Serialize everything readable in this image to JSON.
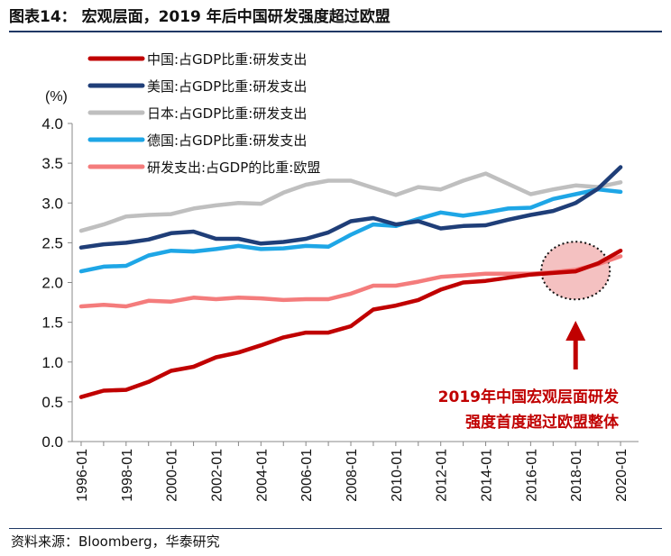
{
  "header": {
    "title": "图表14：  宏观层面，2019 年后中国研发强度超过欧盟"
  },
  "footer": {
    "source": "资料来源：Bloomberg，华泰研究"
  },
  "chart_data": {
    "type": "line",
    "title": "",
    "unit": "(%)",
    "xlabel": "",
    "ylabel": "",
    "ylim": [
      0.0,
      4.0
    ],
    "yticks": [
      "0.0",
      "0.5",
      "1.0",
      "1.5",
      "2.0",
      "2.5",
      "3.0",
      "3.5",
      "4.0"
    ],
    "xtick_labels": [
      "1996-01",
      "1998-01",
      "2000-01",
      "2002-01",
      "2004-01",
      "2006-01",
      "2008-01",
      "2010-01",
      "2012-01",
      "2014-01",
      "2016-01",
      "2018-01",
      "2020-01"
    ],
    "x": [
      1996,
      1997,
      1998,
      1999,
      2000,
      2001,
      2002,
      2003,
      2004,
      2005,
      2006,
      2007,
      2008,
      2009,
      2010,
      2011,
      2012,
      2013,
      2014,
      2015,
      2016,
      2017,
      2018,
      2019,
      2020
    ],
    "legend_position": "top-left",
    "series": [
      {
        "name": "中国:占GDP比重:研发支出",
        "color": "#c00000",
        "values": [
          0.56,
          0.64,
          0.65,
          0.75,
          0.89,
          0.94,
          1.06,
          1.12,
          1.21,
          1.31,
          1.37,
          1.37,
          1.45,
          1.66,
          1.71,
          1.78,
          1.91,
          2.0,
          2.02,
          2.06,
          2.1,
          2.12,
          2.14,
          2.24,
          2.4
        ]
      },
      {
        "name": "美国:占GDP比重:研发支出",
        "color": "#1f3e78",
        "values": [
          2.44,
          2.48,
          2.5,
          2.54,
          2.62,
          2.64,
          2.55,
          2.55,
          2.49,
          2.51,
          2.55,
          2.63,
          2.77,
          2.81,
          2.73,
          2.77,
          2.68,
          2.71,
          2.72,
          2.79,
          2.85,
          2.9,
          3.0,
          3.18,
          3.45
        ]
      },
      {
        "name": "日本:占GDP比重:研发支出",
        "color": "#bfbfbf",
        "values": [
          2.65,
          2.73,
          2.83,
          2.85,
          2.86,
          2.93,
          2.97,
          3.0,
          2.99,
          3.13,
          3.23,
          3.28,
          3.28,
          3.19,
          3.1,
          3.2,
          3.17,
          3.28,
          3.37,
          3.24,
          3.11,
          3.17,
          3.22,
          3.2,
          3.26
        ]
      },
      {
        "name": "德国:占GDP比重:研发支出",
        "color": "#1ea6e6",
        "values": [
          2.14,
          2.2,
          2.21,
          2.34,
          2.4,
          2.39,
          2.42,
          2.46,
          2.42,
          2.43,
          2.46,
          2.45,
          2.6,
          2.73,
          2.71,
          2.8,
          2.88,
          2.84,
          2.88,
          2.93,
          2.94,
          3.05,
          3.11,
          3.17,
          3.14
        ]
      },
      {
        "name": "研发支出:占GDP的比重:欧盟",
        "color": "#f47c7c",
        "values": [
          1.7,
          1.72,
          1.7,
          1.77,
          1.76,
          1.81,
          1.79,
          1.81,
          1.8,
          1.78,
          1.79,
          1.79,
          1.86,
          1.96,
          1.96,
          2.01,
          2.07,
          2.09,
          2.11,
          2.11,
          2.11,
          2.13,
          2.16,
          2.23,
          2.33
        ]
      }
    ],
    "annotation": {
      "lines": [
        "2019年中国宏观层面研发",
        "强度首度超过欧盟整体"
      ],
      "color": "#c00000",
      "highlight_fill": "#f2b6b6"
    }
  }
}
